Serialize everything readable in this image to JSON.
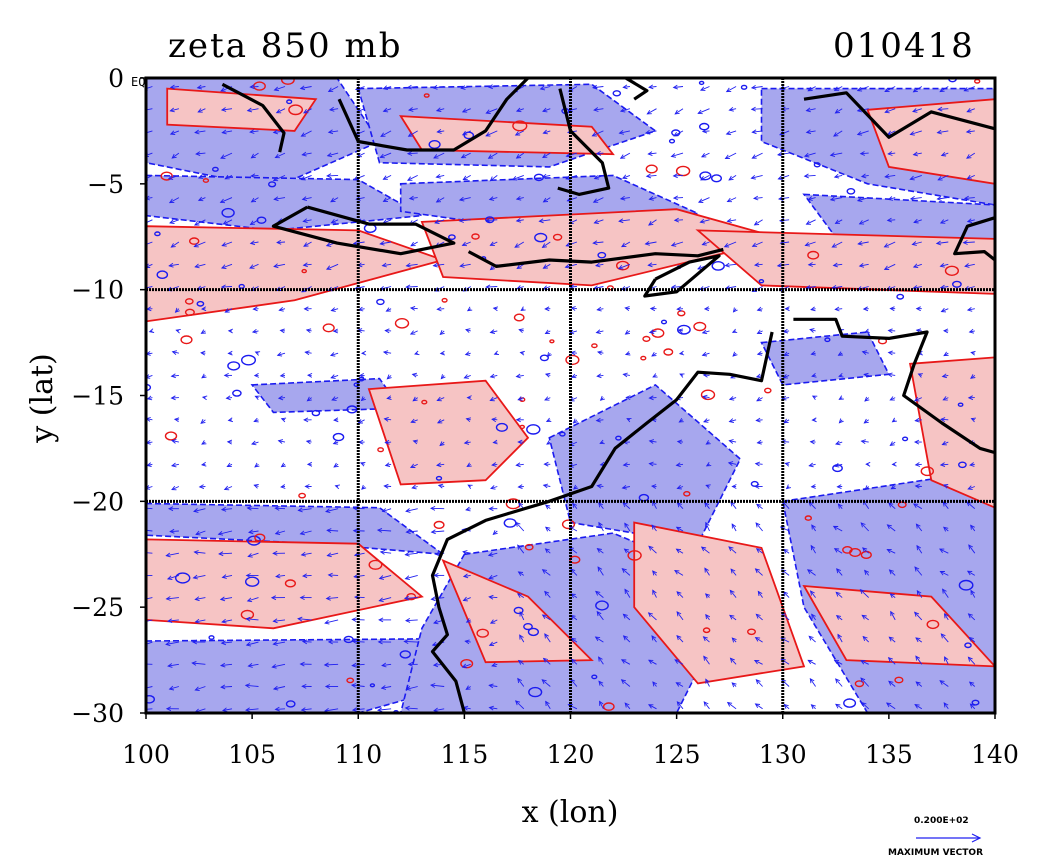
{
  "title_left": "zeta 850 mb",
  "title_right": "010418",
  "map": {
    "xlabel": "x (lon)",
    "ylabel": "y (lat)",
    "x_range": [
      100,
      140
    ],
    "y_range": [
      -30,
      0
    ],
    "x_ticks": [
      "100",
      "105",
      "110",
      "115",
      "120",
      "125",
      "130",
      "135",
      "140"
    ],
    "y_ticks": [
      "0",
      "−5",
      "−10",
      "−15",
      "−20",
      "−25",
      "−30"
    ],
    "eq_label": "EQ",
    "gridlines_lon": [
      110,
      120,
      130
    ],
    "gridlines_lat": [
      -10,
      -20
    ],
    "colors": {
      "negative_fill": "#a7a7ee",
      "negative_contour": "#1b1bf0",
      "positive_fill": "#f6c4c4",
      "positive_contour": "#e81818",
      "vectors": "#2020f0",
      "coastline": "#000000"
    }
  },
  "legend": {
    "value": "0.200E+02",
    "caption": "MAXIMUM VECTOR"
  }
}
